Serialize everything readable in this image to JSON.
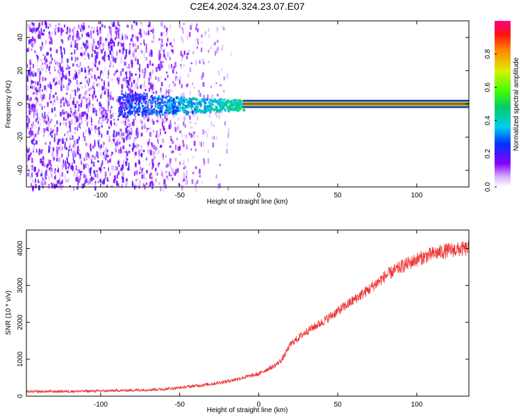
{
  "title": "C2E4.2024.324.23.07.E07",
  "colorbar": {
    "label": "Normalized spectral amplitude",
    "ticks": [
      "0.0",
      "0.2",
      "0.4",
      "0.6",
      "0.8"
    ],
    "tick_values": [
      0.0,
      0.2,
      0.4,
      0.6,
      0.8
    ],
    "range": [
      0,
      1
    ]
  },
  "colors": {
    "snr_line": "#ee3333",
    "axis": "#000000",
    "background": "#ffffff"
  },
  "chart_data": [
    {
      "type": "heatmap",
      "xlabel": "Height of straight line (km)",
      "ylabel": "Frequency (Hz)",
      "xlim": [
        -147,
        133
      ],
      "ylim": [
        -50,
        50
      ],
      "xticks": [
        -100,
        -50,
        0,
        50,
        100
      ],
      "xtick_labels": [
        "-100",
        "-50",
        "0",
        "50",
        "100"
      ],
      "yticks": [
        -40,
        -20,
        0,
        20,
        40
      ],
      "ytick_labels": [
        "-40",
        "-20",
        "0",
        "20",
        "40"
      ],
      "features": [
        {
          "desc": "scattered noise",
          "x_range": [
            -147,
            -20
          ],
          "freq_range": [
            -50,
            50
          ],
          "amplitude": 0.1
        },
        {
          "desc": "growing signal band",
          "x_range": [
            -90,
            -10
          ],
          "freq_range": [
            -7,
            7
          ],
          "amplitude": 0.35
        },
        {
          "desc": "steady tone",
          "x_range": [
            -10,
            133
          ],
          "freq": 0,
          "amplitude": 1.0
        }
      ]
    },
    {
      "type": "line",
      "xlabel": "Height of straight line (km)",
      "ylabel": "SNR (10 * v/v)",
      "xlim": [
        -147,
        133
      ],
      "ylim": [
        0,
        4500
      ],
      "xticks": [
        -100,
        -50,
        0,
        50,
        100
      ],
      "xtick_labels": [
        "-100",
        "-50",
        "0",
        "50",
        "100"
      ],
      "yticks": [
        0,
        1000,
        2000,
        3000,
        4000
      ],
      "ytick_labels": [
        "0",
        "1000",
        "2000",
        "3000",
        "4000"
      ],
      "series": [
        {
          "x": [
            -147,
            -120,
            -100,
            -80,
            -60,
            -50,
            -40,
            -30,
            -20,
            -10,
            0,
            5,
            10,
            15,
            20,
            30,
            40,
            50,
            60,
            70,
            80,
            90,
            100,
            110,
            120,
            133
          ],
          "y": [
            120,
            130,
            140,
            160,
            190,
            230,
            280,
            330,
            400,
            500,
            600,
            720,
            820,
            1000,
            1400,
            1750,
            2000,
            2300,
            2600,
            2900,
            3250,
            3500,
            3700,
            3850,
            3950,
            4000
          ]
        }
      ]
    }
  ]
}
